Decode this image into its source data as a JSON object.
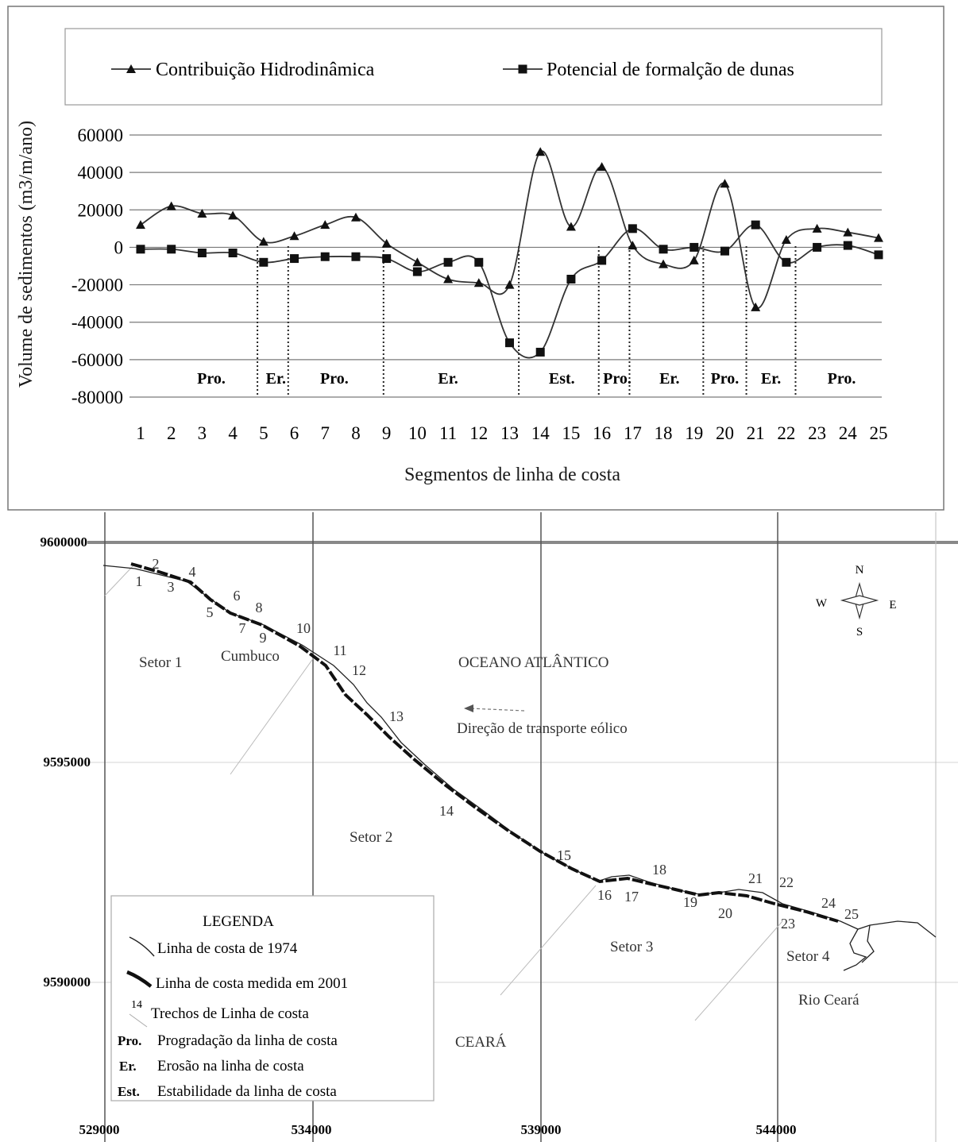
{
  "chart_data": [
    {
      "type": "line",
      "title": "",
      "xlabel": "Segmentos de linha de costa",
      "ylabel": "Volume de sedimentos (m3/m/ano)",
      "ylim": [
        -80000,
        60000
      ],
      "yticks": [
        60000,
        40000,
        20000,
        0,
        -20000,
        -40000,
        -60000,
        -80000
      ],
      "grid": true,
      "legend_position": "top",
      "categories": [
        "1",
        "2",
        "3",
        "4",
        "5",
        "6",
        "7",
        "8",
        "9",
        "10",
        "11",
        "12",
        "13",
        "14",
        "15",
        "16",
        "17",
        "18",
        "19",
        "20",
        "21",
        "22",
        "23",
        "24",
        "25"
      ],
      "series": [
        {
          "name": "Contribuição Hidrodinâmica",
          "marker": "triangle",
          "values": [
            12000,
            22000,
            18000,
            17000,
            3000,
            6000,
            12000,
            16000,
            2000,
            -8000,
            -17000,
            -19000,
            -20000,
            51000,
            11000,
            43000,
            1000,
            -9000,
            -7000,
            34000,
            -32000,
            4000,
            10000,
            8000,
            5000
          ]
        },
        {
          "name": "Potencial de formalção de dunas",
          "marker": "square",
          "values": [
            -1000,
            -1000,
            -3000,
            -3000,
            -8000,
            -6000,
            -5000,
            -5000,
            -6000,
            -13000,
            -8000,
            -8000,
            -51000,
            -56000,
            -17000,
            -7000,
            10000,
            -1000,
            0,
            -2000,
            12000,
            -8000,
            0,
            1000,
            -4000
          ]
        }
      ],
      "zone_boundaries_after_segment": [
        4.8,
        5.8,
        8.9,
        13.3,
        15.9,
        16.9,
        19.3,
        20.7,
        22.3
      ],
      "zones": [
        {
          "label": "Pro.",
          "center": 3.3
        },
        {
          "label": "Er.",
          "center": 5.4
        },
        {
          "label": "Pro.",
          "center": 7.3
        },
        {
          "label": "Er.",
          "center": 11.0
        },
        {
          "label": "Est.",
          "center": 14.7
        },
        {
          "label": "Pro.",
          "center": 16.5
        },
        {
          "label": "Er.",
          "center": 18.2
        },
        {
          "label": "Pro.",
          "center": 20.0
        },
        {
          "label": "Er.",
          "center": 21.5
        },
        {
          "label": "Pro.",
          "center": 23.8
        }
      ]
    },
    {
      "type": "map",
      "x_ticks": [
        "529000",
        "534000",
        "539000",
        "544000"
      ],
      "y_ticks": [
        "9600000",
        "9595000",
        "9590000"
      ],
      "place_labels": [
        "Setor 1",
        "Cumbuco",
        "OCEANO ATLÂNTICO",
        "Direção de transporte eólico",
        "Setor 2",
        "Setor 3",
        "Setor 4",
        "Rio Ceará",
        "CEARÁ"
      ],
      "compass": {
        "n": "N",
        "s": "S",
        "e": "E",
        "w": "W"
      },
      "segment_numbers": [
        "1",
        "2",
        "3",
        "4",
        "5",
        "6",
        "7",
        "8",
        "9",
        "10",
        "11",
        "12",
        "13",
        "14",
        "15",
        "16",
        "17",
        "18",
        "19",
        "20",
        "21",
        "22",
        "23",
        "24",
        "25"
      ],
      "legend": {
        "title": "LEGENDA",
        "items": [
          {
            "key": "",
            "label": "Linha de costa de 1974"
          },
          {
            "key": "",
            "label": "Linha de costa medida em 2001"
          },
          {
            "key": "14",
            "label": "Trechos de Linha de costa"
          },
          {
            "key": "Pro.",
            "label": "Progradação da linha de costa"
          },
          {
            "key": "Er.",
            "label": "Erosão na linha de costa"
          },
          {
            "key": "Est.",
            "label": "Estabilidade da  linha de costa"
          }
        ]
      }
    }
  ]
}
